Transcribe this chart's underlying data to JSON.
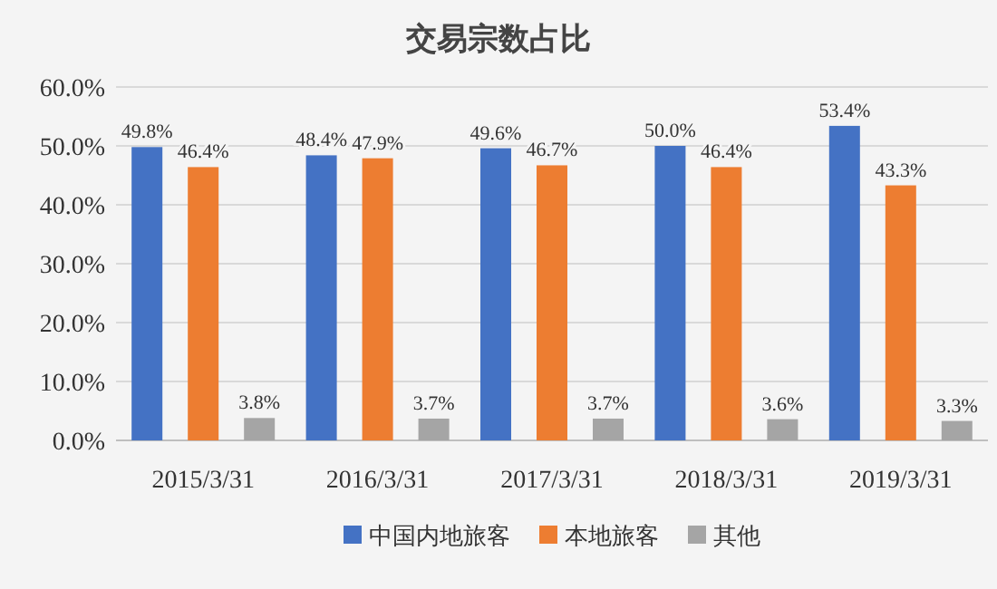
{
  "chart_data": {
    "type": "bar",
    "title": "交易宗数占比",
    "categories": [
      "2015/3/31",
      "2016/3/31",
      "2017/3/31",
      "2018/3/31",
      "2019/3/31"
    ],
    "series": [
      {
        "name": "中国内地旅客",
        "color": "#4472c4",
        "values": [
          49.8,
          48.4,
          49.6,
          50.0,
          53.4
        ],
        "value_labels": [
          "49.8%",
          "48.4%",
          "49.6%",
          "50.0%",
          "53.4%"
        ]
      },
      {
        "name": "本地旅客",
        "color": "#ed7d31",
        "values": [
          46.4,
          47.9,
          46.7,
          46.4,
          43.3
        ],
        "value_labels": [
          "46.4%",
          "47.9%",
          "46.7%",
          "46.4%",
          "43.3%"
        ]
      },
      {
        "name": "其他",
        "color": "#a5a5a5",
        "values": [
          3.8,
          3.7,
          3.7,
          3.6,
          3.3
        ],
        "value_labels": [
          "3.8%",
          "3.7%",
          "3.7%",
          "3.6%",
          "3.3%"
        ]
      }
    ],
    "ylim": [
      0,
      60
    ],
    "yticks": [
      {
        "value": 0,
        "label": "0.0%"
      },
      {
        "value": 10,
        "label": "10.0%"
      },
      {
        "value": 20,
        "label": "20.0%"
      },
      {
        "value": 30,
        "label": "30.0%"
      },
      {
        "value": 40,
        "label": "40.0%"
      },
      {
        "value": 50,
        "label": "50.0%"
      },
      {
        "value": 60,
        "label": "60.0%"
      }
    ],
    "grid": "y",
    "legend": "bottom"
  }
}
